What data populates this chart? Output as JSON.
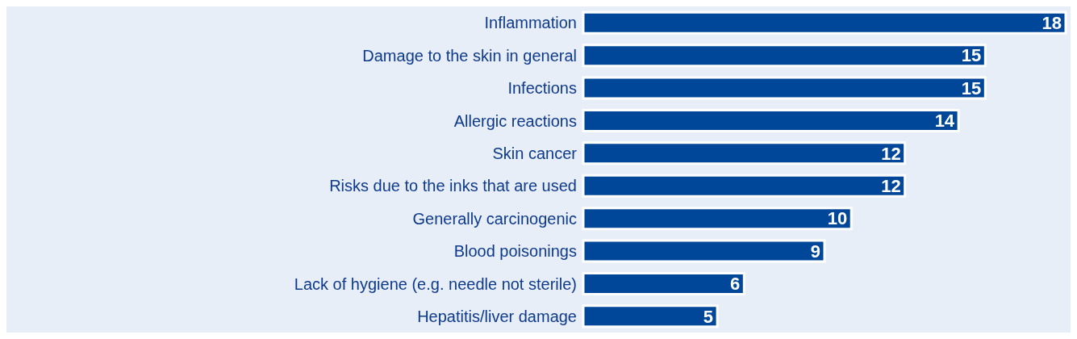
{
  "chart_data": {
    "type": "bar",
    "orientation": "horizontal",
    "categories": [
      "Inflammation",
      "Damage to the skin in general",
      "Infections",
      "Allergic reactions",
      "Skin cancer",
      "Risks due to the inks that are used",
      "Generally carcinogenic",
      "Blood poisonings",
      "Lack of hygiene (e.g. needle not sterile)",
      "Hepatitis/liver damage"
    ],
    "values": [
      18,
      15,
      15,
      14,
      12,
      12,
      10,
      9,
      6,
      5
    ],
    "color": "#00479a",
    "data_labels": true
  }
}
